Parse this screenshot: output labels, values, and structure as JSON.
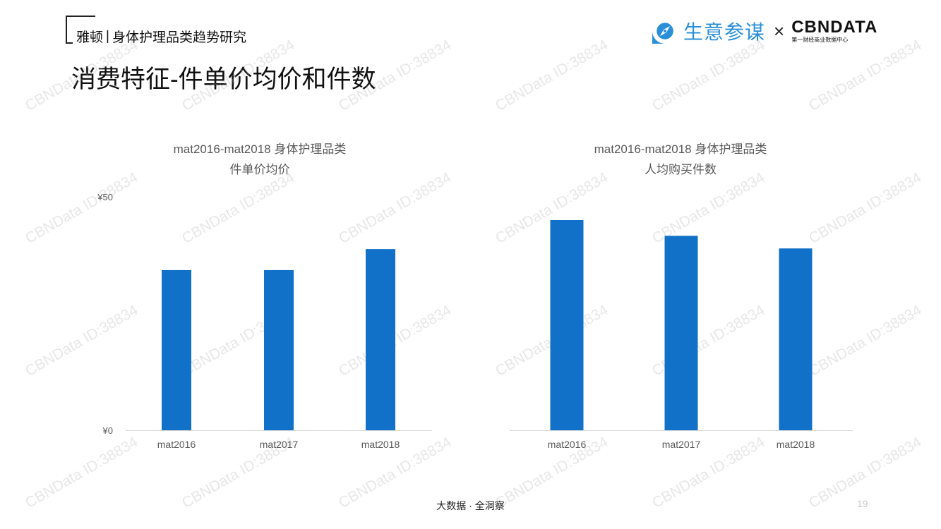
{
  "header": {
    "brand": "雅顿",
    "separator": "|",
    "report_title": "身体护理品类趋势研究",
    "page_title": "消费特征-件单价均价和件数"
  },
  "logos": {
    "partner_name": "生意参谋",
    "times": "×",
    "cbn_name": "CBNDATA",
    "cbn_subtitle": "第一财经商业数据中心",
    "partner_color": "#2a8fd8"
  },
  "watermark": {
    "text": "CBNData ID:38834"
  },
  "chart_data": [
    {
      "type": "bar",
      "title": "mat2016-mat2018 身体护理品类",
      "subtitle": "件单价均价",
      "categories": [
        "mat2016",
        "mat2017",
        "mat2018"
      ],
      "values": [
        34.3,
        34.3,
        38.8
      ],
      "ylim": [
        0,
        50
      ],
      "yticks": [
        "¥0",
        "¥50"
      ],
      "xlabel": "",
      "ylabel": "",
      "grid": false,
      "color": "#1170c8"
    },
    {
      "type": "bar",
      "title": "mat2016-mat2018 身体护理品类",
      "subtitle": "人均购买件数",
      "categories": [
        "mat2016",
        "mat2017",
        "mat2018"
      ],
      "values": [
        100,
        92.5,
        86.5
      ],
      "ylim": [
        0,
        100
      ],
      "yticks": [],
      "xlabel": "",
      "ylabel": "",
      "grid": false,
      "color": "#1170c8"
    }
  ],
  "footer": {
    "text": "大数据 · 全洞察",
    "page_number": "19"
  }
}
